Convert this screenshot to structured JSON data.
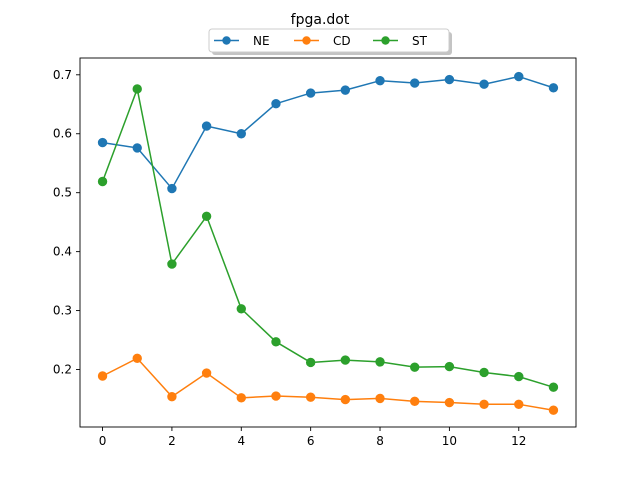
{
  "chart_data": {
    "type": "line",
    "title": "fpga.dot",
    "xlabel": "",
    "ylabel": "",
    "x": [
      0,
      1,
      2,
      3,
      4,
      5,
      6,
      7,
      8,
      9,
      10,
      11,
      12,
      13
    ],
    "xlim": [
      -0.65,
      13.65
    ],
    "ylim": [
      0.1025,
      0.7285
    ],
    "xticks": [
      0,
      2,
      4,
      6,
      8,
      10,
      12
    ],
    "yticks": [
      0.2,
      0.3,
      0.4,
      0.5,
      0.6,
      0.7
    ],
    "xtick_labels": [
      "0",
      "2",
      "4",
      "6",
      "8",
      "10",
      "12"
    ],
    "ytick_labels": [
      "0.2",
      "0.3",
      "0.4",
      "0.5",
      "0.6",
      "0.7"
    ],
    "grid": false,
    "legend_position": "top-center",
    "series": [
      {
        "name": "NE",
        "color": "#1f77b4",
        "values": [
          0.585,
          0.576,
          0.507,
          0.613,
          0.6,
          0.651,
          0.669,
          0.674,
          0.69,
          0.686,
          0.692,
          0.684,
          0.697,
          0.678
        ]
      },
      {
        "name": "CD",
        "color": "#ff7f0e",
        "values": [
          0.189,
          0.219,
          0.154,
          0.194,
          0.152,
          0.155,
          0.153,
          0.149,
          0.151,
          0.146,
          0.144,
          0.141,
          0.141,
          0.131
        ]
      },
      {
        "name": "ST",
        "color": "#2ca02c",
        "values": [
          0.519,
          0.676,
          0.379,
          0.46,
          0.303,
          0.247,
          0.212,
          0.216,
          0.213,
          0.204,
          0.205,
          0.195,
          0.188,
          0.17
        ]
      }
    ]
  }
}
